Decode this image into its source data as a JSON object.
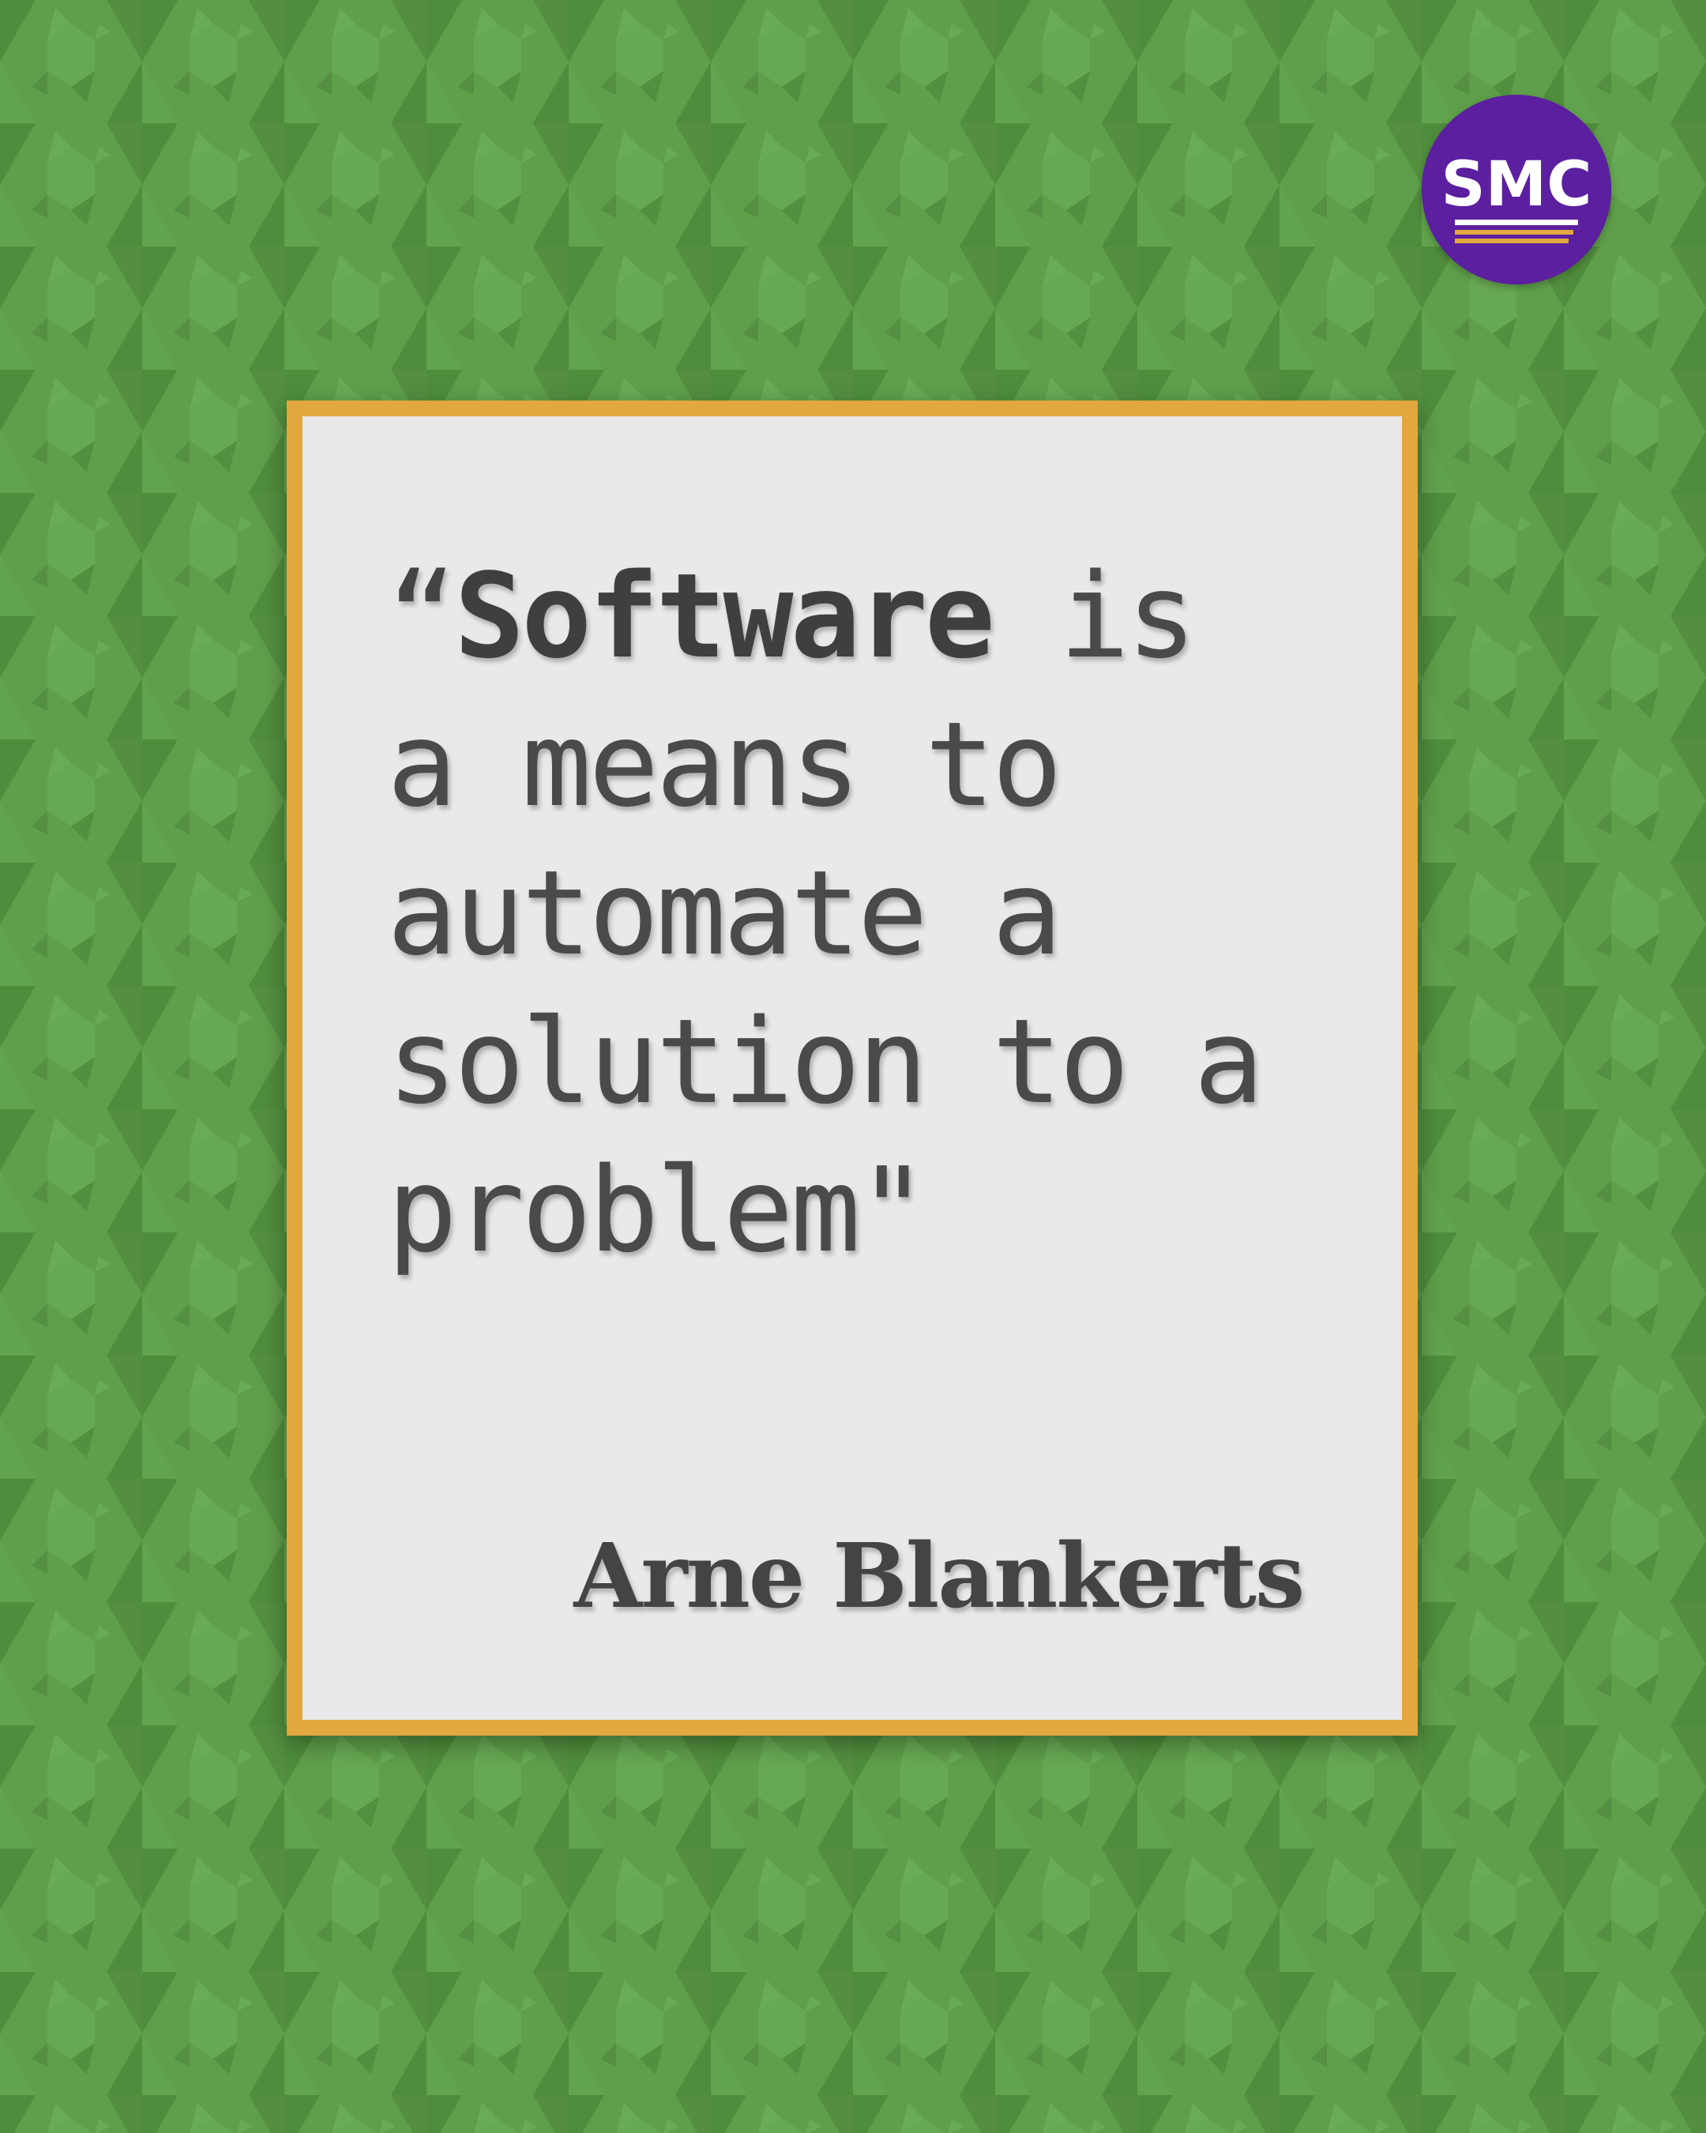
{
  "background": {
    "color": "#5a9a45",
    "pattern_light": "#65a550",
    "pattern_dark": "#4e8a3b"
  },
  "logo": {
    "text": "SMC",
    "bg_color": "#5b1fa0",
    "accent_color": "#e2a73e"
  },
  "frame": {
    "border_color": "#e2a73e",
    "fill_color": "#e9e9e9"
  },
  "quote": {
    "open_mark": "“",
    "emphasis": "Software",
    "line1_rest": " is",
    "line2": "a means to",
    "line3": "automate a",
    "line4": "solution to a",
    "line5": "problem\""
  },
  "author": {
    "name": "Arne Blankerts"
  }
}
